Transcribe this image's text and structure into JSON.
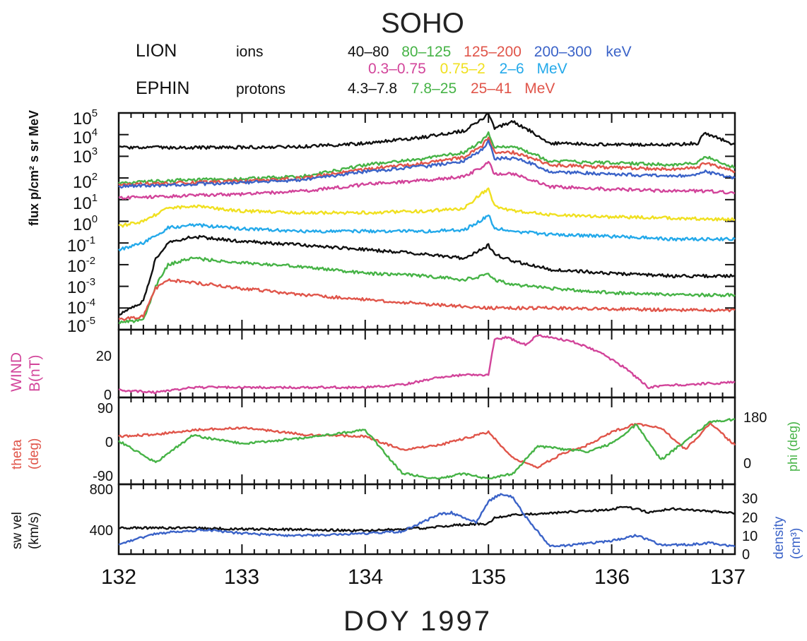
{
  "title": "SOHO",
  "legend": {
    "lion_label": "LION",
    "lion_kind": "ions",
    "lion_kev": [
      {
        "text": "40–80",
        "color": "#111111"
      },
      {
        "text": "80–125",
        "color": "#46b346"
      },
      {
        "text": "125–200",
        "color": "#e0554a"
      },
      {
        "text": "200–300",
        "color": "#3b63c8"
      }
    ],
    "lion_kev_unit": {
      "text": "keV",
      "color": "#3b63c8"
    },
    "lion_mev": [
      {
        "text": "0.3–0.75",
        "color": "#d2449a"
      },
      {
        "text": "0.75–2",
        "color": "#f0e020"
      },
      {
        "text": "2–6",
        "color": "#23a9ea"
      }
    ],
    "lion_mev_unit": {
      "text": "MeV",
      "color": "#23a9ea"
    },
    "ephin_label": "EPHIN",
    "ephin_kind": "protons",
    "ephin": [
      {
        "text": "4.3–7.8",
        "color": "#111111"
      },
      {
        "text": "7.8–25",
        "color": "#46b346"
      },
      {
        "text": "25–41",
        "color": "#e0554a"
      }
    ],
    "ephin_unit": {
      "text": "MeV",
      "color": "#e0554a"
    }
  },
  "colors": {
    "black": "#111111",
    "green": "#46b346",
    "red": "#e0554a",
    "blue": "#3b63c8",
    "magenta": "#d2449a",
    "yellow": "#f0e020",
    "cyan": "#23a9ea"
  },
  "panel_labels": {
    "flux": "flux p/cm² s sr MeV",
    "wind_1": "WIND",
    "wind_2": "B(nT)",
    "theta_1": "theta",
    "theta_2": "(deg)",
    "phi": "phi (deg)",
    "vel_1": "sw vel",
    "vel_2": "(km/s)",
    "dens_1": "density",
    "dens_2": "(cm³)"
  },
  "x_tick_labels": [
    "132",
    "133",
    "134",
    "135",
    "136",
    "137"
  ],
  "xlabel": "DOY 1997",
  "flux_exp_labels": [
    "5",
    "4",
    "3",
    "2",
    "1",
    "0",
    "-1",
    "-2",
    "-3",
    "-4",
    "-5"
  ],
  "b_tick_labels": [
    "20",
    "0"
  ],
  "theta_tick_labels": [
    "90",
    "0",
    "-90"
  ],
  "phi_tick_labels": [
    "180",
    "0"
  ],
  "vel_tick_labels": [
    "800",
    "400"
  ],
  "dens_tick_labels": [
    "30",
    "20",
    "10",
    "0"
  ],
  "chart_data": [
    {
      "type": "line",
      "title": "SOHO",
      "panel": "flux",
      "ylabel": "flux p/cm² s sr MeV",
      "yscale": "log",
      "ylim": [
        1e-05,
        100000
      ],
      "xlim": [
        132,
        137
      ],
      "xlabel": "DOY 1997",
      "series": [
        {
          "name": "40–80",
          "color": "#111111",
          "x": [
            132,
            132.5,
            133,
            133.5,
            134,
            134.5,
            134.8,
            134.95,
            135.0,
            135.05,
            135.2,
            135.3,
            135.5,
            136,
            136.5,
            136.7,
            136.75,
            137
          ],
          "y": [
            2500,
            2500,
            2600,
            2800,
            4000,
            8000,
            15000,
            50000,
            100000,
            20000,
            40000,
            20000,
            4000,
            3500,
            3500,
            4000,
            12000,
            3500
          ]
        },
        {
          "name": "80–125",
          "color": "#46b346",
          "x": [
            132,
            132.5,
            133,
            133.5,
            134,
            134.5,
            134.8,
            134.95,
            135.0,
            135.05,
            135.2,
            135.3,
            135.5,
            136,
            136.5,
            136.7,
            136.75,
            137
          ],
          "y": [
            60,
            80,
            90,
            120,
            400,
            800,
            1500,
            5000,
            12000,
            2500,
            3000,
            1800,
            600,
            500,
            400,
            500,
            1000,
            300
          ]
        },
        {
          "name": "125–200",
          "color": "#e0554a",
          "x": [
            132,
            132.5,
            133,
            133.5,
            134,
            134.5,
            134.8,
            134.95,
            135.0,
            135.05,
            135.2,
            135.3,
            135.5,
            136,
            136.5,
            136.7,
            136.75,
            137
          ],
          "y": [
            50,
            60,
            70,
            100,
            250,
            500,
            900,
            3000,
            8000,
            1500,
            1500,
            1000,
            400,
            300,
            250,
            300,
            500,
            200
          ]
        },
        {
          "name": "200–300",
          "color": "#3b63c8",
          "x": [
            132,
            132.5,
            133,
            133.5,
            134,
            134.5,
            134.8,
            134.95,
            135.0,
            135.05,
            135.2,
            135.3,
            135.5,
            136,
            136.5,
            136.7,
            136.75,
            137
          ],
          "y": [
            40,
            50,
            60,
            80,
            200,
            350,
            600,
            2000,
            5000,
            800,
            800,
            600,
            200,
            150,
            120,
            150,
            200,
            100
          ]
        },
        {
          "name": "0.3–0.75",
          "color": "#d2449a",
          "x": [
            132,
            132.5,
            133,
            133.5,
            134,
            134.5,
            134.8,
            134.95,
            135.0,
            135.05,
            135.2,
            135.3,
            135.5,
            136,
            136.5,
            136.7,
            136.75,
            137
          ],
          "y": [
            12,
            15,
            18,
            25,
            50,
            80,
            120,
            300,
            600,
            150,
            150,
            100,
            40,
            30,
            25,
            25,
            25,
            20
          ]
        },
        {
          "name": "0.75–2",
          "color": "#f0e020",
          "x": [
            132,
            132.2,
            132.4,
            132.6,
            133,
            133.5,
            134,
            134.5,
            134.8,
            134.95,
            135.0,
            135.05,
            135.2,
            135.5,
            136,
            136.5,
            137
          ],
          "y": [
            0.6,
            1,
            4,
            5,
            3,
            2.5,
            2.5,
            3,
            4,
            20,
            30,
            5,
            3,
            2,
            1.6,
            1.4,
            1.2
          ]
        },
        {
          "name": "2–6",
          "color": "#23a9ea",
          "x": [
            132,
            132.2,
            132.4,
            132.6,
            133,
            133.5,
            134,
            134.5,
            134.8,
            134.95,
            135.0,
            135.05,
            135.2,
            135.5,
            136,
            136.5,
            137
          ],
          "y": [
            0.05,
            0.1,
            0.5,
            0.7,
            0.45,
            0.35,
            0.35,
            0.35,
            0.4,
            1.2,
            2,
            0.5,
            0.35,
            0.25,
            0.2,
            0.15,
            0.15
          ]
        },
        {
          "name": "4.3–7.8",
          "color": "#111111",
          "x": [
            132,
            132.2,
            132.3,
            132.4,
            132.6,
            133,
            133.5,
            134,
            134.5,
            134.8,
            134.95,
            135.0,
            135.05,
            135.2,
            135.5,
            136,
            136.5,
            137
          ],
          "y": [
            5e-05,
            0.0002,
            0.02,
            0.1,
            0.2,
            0.12,
            0.08,
            0.05,
            0.03,
            0.02,
            0.05,
            0.08,
            0.03,
            0.015,
            0.006,
            0.004,
            0.003,
            0.003
          ]
        },
        {
          "name": "7.8–25",
          "color": "#46b346",
          "x": [
            132,
            132.2,
            132.3,
            132.4,
            132.6,
            133,
            133.5,
            134,
            134.5,
            134.8,
            134.95,
            135.0,
            135.05,
            135.2,
            135.5,
            136,
            136.5,
            137
          ],
          "y": [
            2e-05,
            3e-05,
            0.001,
            0.01,
            0.02,
            0.012,
            0.008,
            0.004,
            0.003,
            0.002,
            0.003,
            0.004,
            0.002,
            0.0012,
            0.0008,
            0.0005,
            0.0004,
            0.0004
          ]
        },
        {
          "name": "25–41",
          "color": "#e0554a",
          "x": [
            132,
            132.2,
            132.3,
            132.4,
            132.6,
            133,
            133.5,
            134,
            134.5,
            135,
            135.5,
            136,
            136.5,
            137
          ],
          "y": [
            3e-05,
            4e-05,
            0.0008,
            0.002,
            0.0015,
            0.0008,
            0.0004,
            0.00025,
            0.00015,
            0.0001,
            0.0001,
            9e-05,
            8e-05,
            8e-05
          ]
        }
      ]
    },
    {
      "type": "line",
      "panel": "wind_b",
      "ylabel": "WIND B(nT)",
      "ylim": [
        0,
        27
      ],
      "xlim": [
        132,
        137
      ],
      "series": [
        {
          "color": "#d2449a",
          "x": [
            132,
            132.3,
            132.6,
            133,
            133.5,
            134,
            134.3,
            134.6,
            134.8,
            135,
            135.05,
            135.15,
            135.3,
            135.4,
            135.5,
            135.7,
            135.9,
            136.1,
            136.3,
            136.5,
            137
          ],
          "y": [
            3,
            2,
            4,
            4,
            4,
            4,
            5,
            8,
            9,
            9,
            23,
            24,
            21,
            25,
            24,
            22,
            18,
            12,
            4,
            5,
            6
          ]
        }
      ]
    },
    {
      "type": "line",
      "panel": "angles",
      "ylabel": "theta (deg)",
      "ylim": [
        -100,
        100
      ],
      "xlim": [
        132,
        137
      ],
      "y2label": "phi (deg)",
      "y2lim": [
        40,
        360
      ],
      "series": [
        {
          "name": "theta",
          "axis": "left",
          "color": "#e0554a",
          "x": [
            132,
            132.3,
            132.6,
            133,
            133.5,
            134,
            134.3,
            134.6,
            134.8,
            135,
            135.2,
            135.4,
            135.6,
            135.8,
            136,
            136.2,
            136.4,
            136.6,
            136.8,
            137
          ],
          "y": [
            10,
            15,
            25,
            30,
            15,
            10,
            -20,
            -10,
            5,
            20,
            -40,
            -60,
            -30,
            -10,
            20,
            40,
            30,
            -20,
            40,
            -10
          ]
        },
        {
          "name": "phi",
          "axis": "right",
          "color": "#46b346",
          "x": [
            132,
            132.3,
            132.6,
            133,
            133.5,
            134,
            134.3,
            134.6,
            134.8,
            135,
            135.2,
            135.4,
            135.6,
            135.8,
            136,
            136.2,
            136.4,
            136.6,
            136.8,
            137
          ],
          "y": [
            200,
            120,
            220,
            190,
            210,
            240,
            80,
            60,
            80,
            60,
            80,
            180,
            170,
            160,
            190,
            260,
            130,
            200,
            270,
            280
          ]
        }
      ]
    },
    {
      "type": "line",
      "panel": "solar_wind",
      "ylabel": "sw vel (km/s)",
      "ylim": [
        0,
        800
      ],
      "xlim": [
        132,
        137
      ],
      "xlabel": "DOY 1997",
      "y2label": "density (cm³)",
      "y2lim": [
        0,
        37
      ],
      "series": [
        {
          "name": "sw vel",
          "axis": "left",
          "color": "#111111",
          "x": [
            132,
            132.5,
            133,
            133.5,
            134,
            134.5,
            134.8,
            135,
            135.05,
            135.2,
            135.5,
            136,
            136.1,
            136.3,
            136.5,
            137
          ],
          "y": [
            300,
            300,
            290,
            280,
            270,
            300,
            340,
            350,
            420,
            450,
            470,
            510,
            550,
            480,
            520,
            470
          ]
        },
        {
          "name": "density",
          "axis": "right",
          "color": "#3b63c8",
          "x": [
            132,
            132.3,
            132.5,
            132.7,
            133,
            133.3,
            133.6,
            134,
            134.3,
            134.5,
            134.6,
            134.7,
            134.8,
            134.9,
            135,
            135.1,
            135.2,
            135.3,
            135.4,
            135.5,
            135.7,
            136,
            136.2,
            136.4,
            136.6,
            136.8,
            137
          ],
          "y": [
            5,
            11,
            12,
            13,
            11,
            10,
            10,
            11,
            12,
            18,
            21,
            22,
            19,
            17,
            28,
            32,
            30,
            20,
            12,
            4,
            5,
            7,
            10,
            5,
            5,
            6,
            4
          ]
        }
      ]
    }
  ]
}
